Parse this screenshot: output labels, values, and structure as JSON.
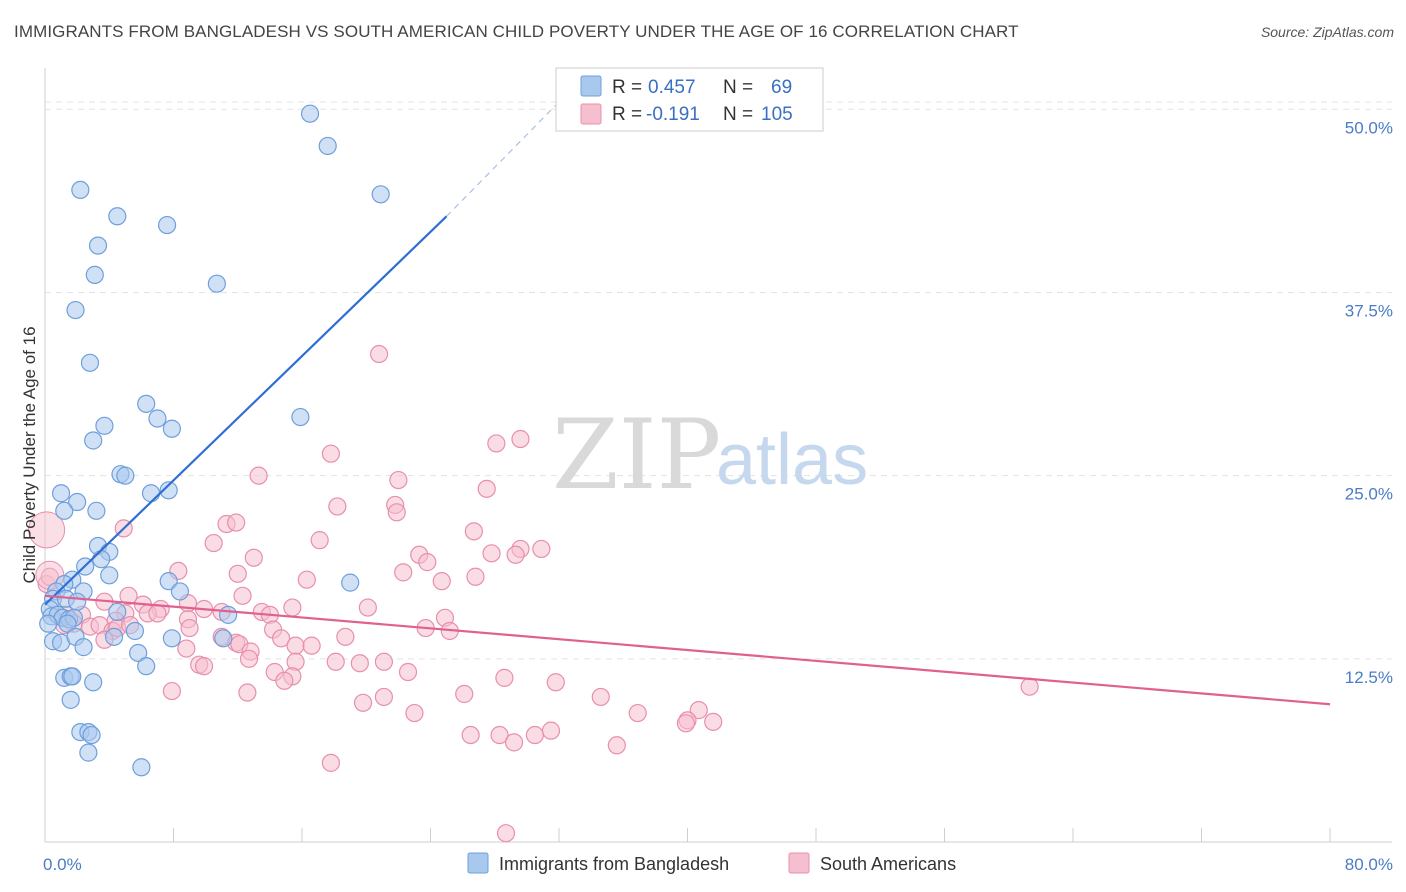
{
  "title": "IMMIGRANTS FROM BANGLADESH VS SOUTH AMERICAN CHILD POVERTY UNDER THE AGE OF 16 CORRELATION CHART",
  "source": "Source: ZipAtlas.com",
  "watermark": {
    "zip": "ZIP",
    "atlas": "atlas"
  },
  "colors": {
    "blue_fill": "#a9c8ee",
    "blue_stroke": "#6f9fdc",
    "blue_line": "#2f6fd3",
    "pink_fill": "#f6bfd0",
    "pink_stroke": "#e88fac",
    "pink_line": "#e0608e",
    "grid": "#e3e3e3",
    "tick_label": "#4a7cc7"
  },
  "legend": {
    "r_label": "R =",
    "n_label": "N =",
    "blue": {
      "r": "0.457",
      "n": "69"
    },
    "pink": {
      "r": "-0.191",
      "n": "105"
    }
  },
  "bottom_legend": {
    "blue": "Immigrants from Bangladesh",
    "pink": "South Americans"
  },
  "chart_data": {
    "type": "scatter",
    "title": "IMMIGRANTS FROM BANGLADESH VS SOUTH AMERICAN CHILD POVERTY UNDER THE AGE OF 16 CORRELATION CHART",
    "xlabel": "",
    "ylabel": "Child Poverty Under the Age of 16",
    "xlim": [
      0,
      80
    ],
    "ylim": [
      0,
      52
    ],
    "x_tick_labels": [
      {
        "value": 0,
        "label": "0.0%"
      },
      {
        "value": 80,
        "label": "80.0%"
      }
    ],
    "y_tick_labels": [
      {
        "value": 12.5,
        "label": "12.5%"
      },
      {
        "value": 25,
        "label": "25.0%"
      },
      {
        "value": 37.5,
        "label": "37.5%"
      },
      {
        "value": 50,
        "label": "50.0%"
      }
    ],
    "grid": true,
    "legend_position": "top-center",
    "series": [
      {
        "name": "Immigrants from Bangladesh",
        "color": "#a9c8ee",
        "r": 0.457,
        "n": 69,
        "trend": {
          "x1": 0,
          "y1": 16.2,
          "x2": 25,
          "y2": 42.7,
          "dash_to_x": 32,
          "dash_to_y": 50.5
        },
        "points": [
          [
            16.5,
            49.7
          ],
          [
            17.6,
            47.5
          ],
          [
            2.2,
            44.5
          ],
          [
            4.5,
            42.7
          ],
          [
            7.6,
            42.1
          ],
          [
            20.9,
            44.2
          ],
          [
            3.3,
            40.7
          ],
          [
            3.1,
            38.7
          ],
          [
            10.7,
            38.1
          ],
          [
            1.9,
            36.3
          ],
          [
            2.8,
            32.7
          ],
          [
            6.3,
            29.9
          ],
          [
            7.0,
            28.9
          ],
          [
            7.9,
            28.2
          ],
          [
            3.7,
            28.4
          ],
          [
            3.0,
            27.4
          ],
          [
            15.9,
            29.0
          ],
          [
            4.7,
            25.1
          ],
          [
            5.0,
            25.0
          ],
          [
            1.0,
            23.8
          ],
          [
            6.6,
            23.8
          ],
          [
            7.7,
            24.0
          ],
          [
            2.0,
            23.2
          ],
          [
            1.2,
            22.6
          ],
          [
            3.2,
            22.6
          ],
          [
            3.3,
            20.2
          ],
          [
            4.0,
            19.8
          ],
          [
            3.5,
            19.3
          ],
          [
            2.5,
            18.8
          ],
          [
            1.7,
            17.9
          ],
          [
            4.0,
            18.2
          ],
          [
            7.7,
            17.8
          ],
          [
            8.4,
            17.1
          ],
          [
            19.0,
            17.7
          ],
          [
            1.2,
            17.6
          ],
          [
            0.7,
            17.1
          ],
          [
            2.4,
            17.1
          ],
          [
            0.5,
            16.6
          ],
          [
            1.3,
            16.6
          ],
          [
            2.0,
            16.4
          ],
          [
            0.3,
            15.9
          ],
          [
            0.4,
            15.4
          ],
          [
            0.8,
            15.5
          ],
          [
            1.1,
            15.3
          ],
          [
            1.5,
            15.2
          ],
          [
            1.8,
            15.3
          ],
          [
            4.5,
            15.7
          ],
          [
            11.4,
            15.5
          ],
          [
            0.2,
            14.9
          ],
          [
            1.4,
            14.9
          ],
          [
            0.5,
            13.7
          ],
          [
            1.0,
            13.6
          ],
          [
            1.9,
            14.0
          ],
          [
            2.4,
            13.3
          ],
          [
            4.3,
            14.0
          ],
          [
            5.6,
            14.4
          ],
          [
            7.9,
            13.9
          ],
          [
            11.1,
            13.9
          ],
          [
            5.8,
            12.9
          ],
          [
            6.3,
            12.0
          ],
          [
            1.2,
            11.2
          ],
          [
            1.6,
            11.3
          ],
          [
            1.7,
            11.3
          ],
          [
            3.0,
            10.9
          ],
          [
            1.6,
            9.7
          ],
          [
            2.2,
            7.5
          ],
          [
            2.7,
            7.5
          ],
          [
            2.9,
            7.3
          ],
          [
            2.7,
            6.1
          ],
          [
            6.0,
            5.1
          ]
        ]
      },
      {
        "name": "South Americans",
        "color": "#f6bfd0",
        "r": -0.191,
        "n": 105,
        "trend": {
          "x1": 0,
          "y1": 16.8,
          "x2": 80,
          "y2": 9.4
        },
        "points": [
          [
            20.8,
            33.3
          ],
          [
            28.1,
            27.2
          ],
          [
            29.6,
            27.5
          ],
          [
            17.8,
            26.5
          ],
          [
            13.3,
            25.0
          ],
          [
            22.0,
            24.7
          ],
          [
            27.5,
            24.1
          ],
          [
            18.2,
            22.9
          ],
          [
            21.8,
            23.0
          ],
          [
            21.9,
            22.5
          ],
          [
            4.9,
            21.4
          ],
          [
            26.7,
            21.2
          ],
          [
            11.3,
            21.7
          ],
          [
            11.9,
            21.8
          ],
          [
            17.1,
            20.6
          ],
          [
            10.5,
            20.4
          ],
          [
            29.6,
            20.0
          ],
          [
            30.9,
            20.0
          ],
          [
            27.8,
            19.7
          ],
          [
            29.3,
            19.6
          ],
          [
            23.3,
            19.6
          ],
          [
            23.8,
            19.1
          ],
          [
            13.0,
            19.4
          ],
          [
            8.3,
            18.5
          ],
          [
            12.0,
            18.3
          ],
          [
            22.3,
            18.4
          ],
          [
            26.8,
            18.1
          ],
          [
            24.7,
            17.8
          ],
          [
            16.3,
            17.9
          ],
          [
            0.1,
            17.6
          ],
          [
            0.3,
            18.1
          ],
          [
            12.3,
            16.8
          ],
          [
            5.2,
            16.8
          ],
          [
            3.7,
            16.4
          ],
          [
            6.1,
            16.2
          ],
          [
            8.9,
            16.3
          ],
          [
            9.9,
            15.9
          ],
          [
            15.4,
            16.0
          ],
          [
            20.1,
            16.0
          ],
          [
            7.2,
            15.9
          ],
          [
            11.0,
            15.7
          ],
          [
            13.5,
            15.7
          ],
          [
            5.0,
            15.6
          ],
          [
            6.4,
            15.6
          ],
          [
            7.0,
            15.6
          ],
          [
            14.0,
            15.5
          ],
          [
            1.3,
            15.5
          ],
          [
            2.3,
            15.5
          ],
          [
            8.9,
            15.2
          ],
          [
            4.4,
            15.1
          ],
          [
            24.9,
            15.3
          ],
          [
            1.8,
            14.9
          ],
          [
            1.2,
            14.8
          ],
          [
            2.8,
            14.7
          ],
          [
            3.4,
            14.8
          ],
          [
            4.2,
            14.4
          ],
          [
            4.5,
            14.6
          ],
          [
            5.3,
            14.8
          ],
          [
            9.0,
            14.6
          ],
          [
            14.2,
            14.5
          ],
          [
            23.7,
            14.6
          ],
          [
            25.2,
            14.4
          ],
          [
            3.7,
            13.8
          ],
          [
            11.0,
            14.0
          ],
          [
            14.7,
            13.9
          ],
          [
            18.7,
            14.0
          ],
          [
            11.9,
            13.6
          ],
          [
            12.1,
            13.5
          ],
          [
            15.6,
            13.4
          ],
          [
            16.6,
            13.4
          ],
          [
            8.8,
            13.2
          ],
          [
            12.8,
            13.0
          ],
          [
            12.7,
            12.5
          ],
          [
            15.6,
            12.3
          ],
          [
            18.1,
            12.3
          ],
          [
            19.6,
            12.2
          ],
          [
            21.1,
            12.3
          ],
          [
            9.6,
            12.1
          ],
          [
            9.9,
            12.0
          ],
          [
            14.3,
            11.6
          ],
          [
            15.4,
            11.3
          ],
          [
            22.6,
            11.6
          ],
          [
            28.6,
            11.2
          ],
          [
            31.8,
            10.9
          ],
          [
            14.9,
            11.0
          ],
          [
            7.9,
            10.3
          ],
          [
            12.6,
            10.2
          ],
          [
            26.1,
            10.1
          ],
          [
            34.6,
            9.9
          ],
          [
            21.1,
            9.9
          ],
          [
            19.8,
            9.5
          ],
          [
            23.0,
            8.8
          ],
          [
            36.9,
            8.8
          ],
          [
            40.7,
            9.0
          ],
          [
            40.0,
            8.3
          ],
          [
            61.3,
            10.6
          ],
          [
            41.6,
            8.2
          ],
          [
            39.9,
            8.1
          ],
          [
            26.5,
            7.3
          ],
          [
            30.5,
            7.3
          ],
          [
            31.5,
            7.6
          ],
          [
            28.3,
            7.3
          ],
          [
            29.2,
            6.8
          ],
          [
            35.6,
            6.6
          ],
          [
            17.8,
            5.4
          ],
          [
            28.7,
            0.6
          ]
        ]
      }
    ]
  }
}
